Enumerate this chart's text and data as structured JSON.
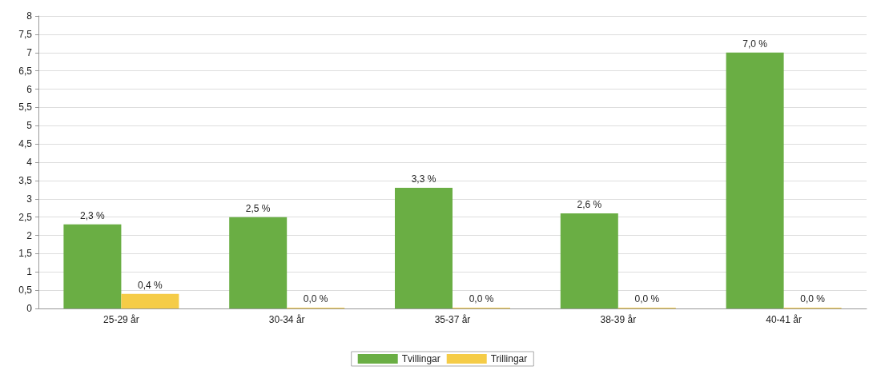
{
  "chart_data": {
    "type": "bar",
    "categories": [
      "25-29 år",
      "30-34 år",
      "35-37 år",
      "38-39 år",
      "40-41 år"
    ],
    "series": [
      {
        "name": "Tvillingar",
        "color": "#6aae44",
        "values": [
          2.3,
          2.5,
          3.3,
          2.6,
          7.0
        ],
        "value_labels": [
          "2,3 %",
          "2,5 %",
          "3,3 %",
          "2,6 %",
          "7,0 %"
        ]
      },
      {
        "name": "Trillingar",
        "color": "#f5cc47",
        "values": [
          0.4,
          0,
          0,
          0,
          0
        ],
        "value_labels": [
          "0,4 %",
          "0,0 %",
          "0,0 %",
          "0,0 %",
          "0,0 %"
        ]
      }
    ],
    "ylim": [
      0,
      8
    ],
    "yticks": [
      0,
      {
        "value": 0.5,
        "label": "0,5"
      },
      1,
      {
        "value": 1.5,
        "label": "1,5"
      },
      2,
      {
        "value": 2.5,
        "label": "2,5"
      },
      3,
      {
        "value": 3.5,
        "label": "3,5"
      },
      4,
      {
        "value": 4.5,
        "label": "4,5"
      },
      5,
      {
        "value": 5.5,
        "label": "5,5"
      },
      6,
      {
        "value": 6.5,
        "label": "6,5"
      },
      7,
      {
        "value": 7.5,
        "label": "7,5"
      },
      8
    ],
    "grid": "y",
    "legend": "bottom"
  }
}
